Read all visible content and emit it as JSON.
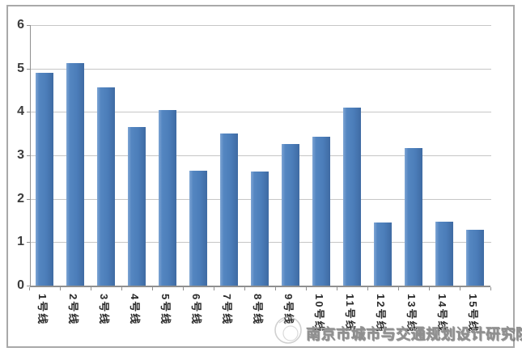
{
  "chart_data": {
    "type": "bar",
    "title": "",
    "xlabel": "",
    "ylabel": "",
    "categories": [
      "1号线",
      "2号线",
      "3号线",
      "4号线",
      "5号线",
      "6号线",
      "7号线",
      "8号线",
      "9号线",
      "10号线",
      "11号线",
      "12号线",
      "13号线",
      "14号线",
      "15号线"
    ],
    "values": [
      4.9,
      5.13,
      4.57,
      3.66,
      4.05,
      2.65,
      3.5,
      2.62,
      3.27,
      3.43,
      4.1,
      1.45,
      3.16,
      1.48,
      1.29
    ],
    "ylim": [
      0,
      6
    ],
    "yticks": [
      0,
      1,
      2,
      3,
      4,
      5,
      6
    ],
    "grid": true,
    "legend_position": "none",
    "bar_color": "#4f81bd",
    "gridline_color": "#c6c6c6",
    "axis_color": "#8f8f8f"
  },
  "watermark": {
    "text": "南京市城市与交通规划设计研究院",
    "logo": "institute-seal-icon"
  }
}
